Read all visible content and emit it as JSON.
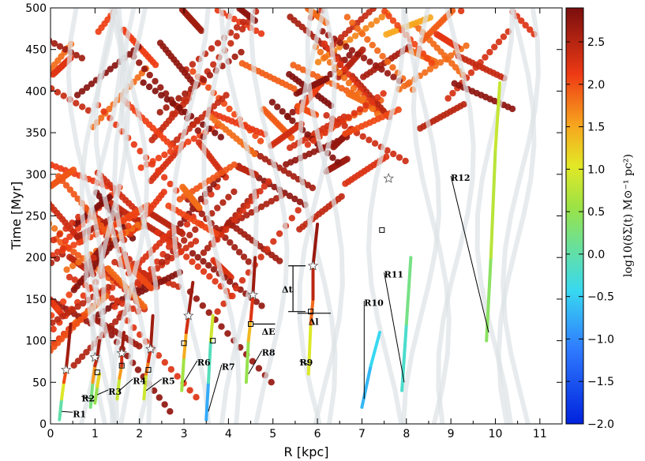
{
  "chart_data": {
    "type": "scatter",
    "title": "",
    "xlabel": "R [kpc]",
    "ylabel": "Time [Myr]",
    "colorbar_label": "log10(δΣ(t) M⊙⁻¹ pc²)",
    "xlim": [
      0,
      11.5
    ],
    "ylim": [
      0,
      500
    ],
    "clim": [
      -2.0,
      2.9
    ],
    "x_ticks": [
      "0",
      "1",
      "2",
      "3",
      "4",
      "5",
      "6",
      "7",
      "8",
      "9",
      "10",
      "11"
    ],
    "y_ticks": [
      "0",
      "50",
      "100",
      "150",
      "200",
      "250",
      "300",
      "350",
      "400",
      "450",
      "500"
    ],
    "colorbar_ticks": [
      "2.5",
      "2.0",
      "1.5",
      "1.0",
      "0.5",
      "0.0",
      "−0.5",
      "−1.0",
      "−1.5",
      "−2.0"
    ],
    "colorbar_tick_values": [
      2.5,
      2.0,
      1.5,
      1.0,
      0.5,
      0.0,
      -0.5,
      -1.0,
      -1.5,
      -2.0
    ],
    "tracks": [
      {
        "label": "R1",
        "points": [
          [
            0.2,
            5,
            -0.5
          ],
          [
            0.25,
            30,
            0.5
          ],
          [
            0.3,
            50,
            1.5
          ],
          [
            0.35,
            65,
            2.5
          ],
          [
            0.4,
            90,
            2.7
          ],
          [
            0.45,
            120,
            2.7
          ]
        ],
        "label_pos": [
          0.5,
          8
        ]
      },
      {
        "label": "R2",
        "points": [
          [
            0.9,
            20,
            -0.5
          ],
          [
            0.95,
            50,
            1.0
          ],
          [
            1.0,
            70,
            2.2
          ],
          [
            1.05,
            80,
            2.6
          ],
          [
            1.1,
            100,
            2.7
          ]
        ],
        "label_pos": [
          0.7,
          27
        ]
      },
      {
        "label": "R3",
        "points": [
          [
            1.0,
            25,
            0.2
          ],
          [
            1.05,
            45,
            0.8
          ],
          [
            1.1,
            60,
            1.5
          ]
        ],
        "label_pos": [
          1.3,
          35
        ]
      },
      {
        "label": "R4",
        "points": [
          [
            1.5,
            30,
            0.5
          ],
          [
            1.55,
            55,
            1.2
          ],
          [
            1.6,
            70,
            2.0
          ],
          [
            1.6,
            85,
            2.6
          ],
          [
            1.65,
            110,
            2.7
          ]
        ],
        "label_pos": [
          1.85,
          48
        ]
      },
      {
        "label": "R5",
        "points": [
          [
            2.1,
            30,
            0.3
          ],
          [
            2.15,
            60,
            1.5
          ],
          [
            2.2,
            75,
            2.0
          ],
          [
            2.25,
            90,
            2.6
          ],
          [
            2.3,
            130,
            2.7
          ]
        ],
        "label_pos": [
          2.5,
          48
        ]
      },
      {
        "label": "R6",
        "points": [
          [
            2.95,
            40,
            0.2
          ],
          [
            3.0,
            80,
            1.0
          ],
          [
            3.05,
            110,
            2.0
          ],
          [
            3.1,
            130,
            2.6
          ],
          [
            3.2,
            170,
            2.7
          ]
        ],
        "label_pos": [
          3.3,
          70
        ]
      },
      {
        "label": "R7",
        "points": [
          [
            3.5,
            5,
            -1.0
          ],
          [
            3.55,
            50,
            -0.5
          ],
          [
            3.6,
            100,
            0.3
          ],
          [
            3.65,
            130,
            1.5
          ]
        ],
        "label_pos": [
          3.85,
          65
        ]
      },
      {
        "label": "R8",
        "points": [
          [
            4.4,
            50,
            0.0
          ],
          [
            4.45,
            100,
            1.0
          ],
          [
            4.5,
            125,
            1.8
          ],
          [
            4.55,
            155,
            2.6
          ],
          [
            4.6,
            200,
            2.7
          ]
        ],
        "label_pos": [
          4.75,
          82
        ]
      },
      {
        "label": "R9",
        "points": [
          [
            5.8,
            60,
            0.5
          ],
          [
            5.85,
            120,
            1.5
          ],
          [
            5.9,
            150,
            2.2
          ],
          [
            5.9,
            190,
            2.7
          ],
          [
            6.0,
            240,
            2.7
          ]
        ],
        "label_pos": [
          5.6,
          70
        ]
      },
      {
        "label": "R10",
        "points": [
          [
            7.0,
            20,
            -0.8
          ],
          [
            7.2,
            70,
            -0.5
          ],
          [
            7.4,
            110,
            -0.3
          ]
        ],
        "label_pos": [
          7.05,
          142
        ]
      },
      {
        "label": "R11",
        "points": [
          [
            7.9,
            40,
            -0.4
          ],
          [
            8.0,
            120,
            0.0
          ],
          [
            8.1,
            200,
            0.4
          ]
        ],
        "label_pos": [
          7.5,
          176
        ]
      },
      {
        "label": "R12",
        "points": [
          [
            9.8,
            100,
            0.2
          ],
          [
            9.9,
            200,
            0.6
          ],
          [
            10.0,
            330,
            0.9
          ],
          [
            10.1,
            410,
            0.8
          ]
        ],
        "label_pos": [
          9.0,
          292
        ]
      }
    ],
    "markers": {
      "stars": [
        [
          0.35,
          65
        ],
        [
          1.0,
          80
        ],
        [
          1.6,
          85
        ],
        [
          2.25,
          90
        ],
        [
          3.1,
          130
        ],
        [
          4.55,
          155
        ],
        [
          5.9,
          190
        ],
        [
          7.6,
          295
        ]
      ],
      "squares": [
        [
          1.05,
          62
        ],
        [
          1.6,
          70
        ],
        [
          2.2,
          65
        ],
        [
          3.0,
          97
        ],
        [
          3.65,
          100
        ],
        [
          4.5,
          120
        ],
        [
          5.85,
          135
        ],
        [
          7.45,
          233
        ]
      ]
    },
    "annotations": {
      "dt_label": "Δt",
      "dl_label": "Δl",
      "dr_label": "ΔE"
    }
  }
}
